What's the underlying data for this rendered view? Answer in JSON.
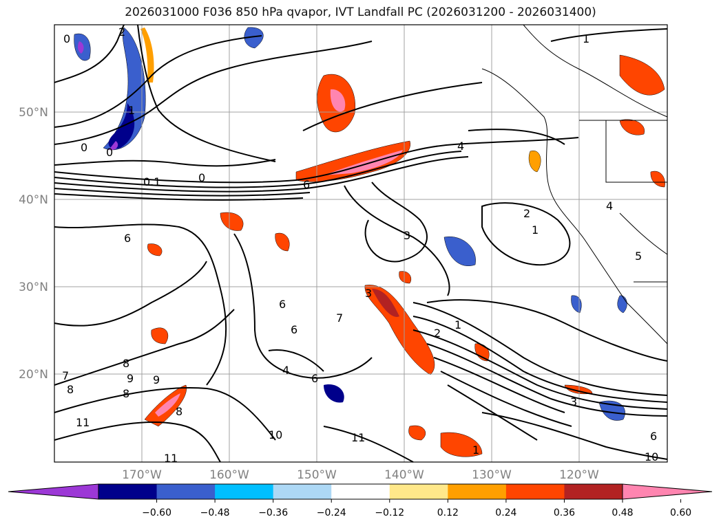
{
  "title": "2026031000 F036 850 hPa qvapor, IVT Landfall PC (2026031200 - 2026031400)",
  "map": {
    "lat_labels": [
      {
        "text": "50°N",
        "lat": 50
      },
      {
        "text": "40°N",
        "lat": 40
      },
      {
        "text": "30°N",
        "lat": 30
      },
      {
        "text": "20°N",
        "lat": 20
      }
    ],
    "lon_labels": [
      {
        "text": "170°W",
        "lon": -170
      },
      {
        "text": "160°W",
        "lon": -160
      },
      {
        "text": "150°W",
        "lon": -150
      },
      {
        "text": "140°W",
        "lon": -140
      },
      {
        "text": "130°W",
        "lon": -130
      },
      {
        "text": "120°W",
        "lon": -120
      }
    ],
    "extent": {
      "lon_min": -180,
      "lon_max": -110,
      "lat_min": 10,
      "lat_max": 60
    },
    "contour_labels": [
      "0",
      "2",
      "1",
      "0",
      "0",
      "0.1",
      "0",
      "6",
      "4",
      "2",
      "1",
      "3",
      "4",
      "5",
      "6",
      "6",
      "7",
      "6",
      "4",
      "6",
      "1",
      "2",
      "3",
      "8",
      "9",
      "9",
      "8",
      "7",
      "8",
      "11",
      "10",
      "11",
      "11",
      "1",
      "10",
      "3",
      "1",
      "6",
      "8"
    ]
  },
  "colorbar": {
    "ticks": [
      "−0.60",
      "−0.48",
      "−0.36",
      "−0.24",
      "−0.12",
      "0.12",
      "0.24",
      "0.36",
      "0.48",
      "0.60"
    ],
    "colors": [
      "#9c38d6",
      "#00008b",
      "#3a5fcd",
      "#00bfff",
      "#add8f5",
      "#ffffff",
      "#ffe88a",
      "#ff9f00",
      "#ff4500",
      "#b22222",
      "#ff85b0"
    ],
    "min_arrow_color": "#9c38d6",
    "max_arrow_color": "#ff85b0"
  }
}
